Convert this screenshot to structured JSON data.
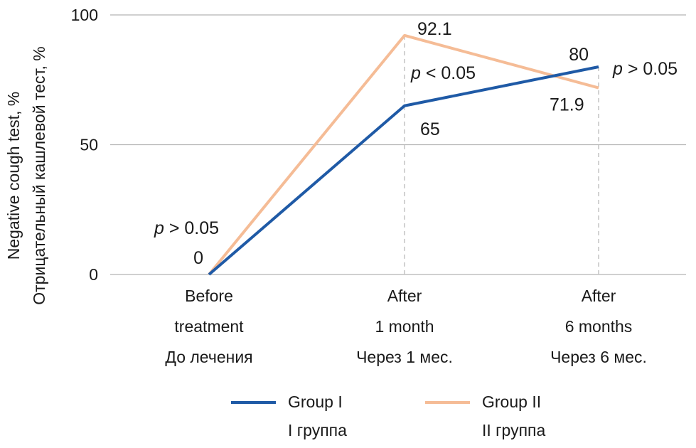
{
  "chart_data": {
    "type": "line",
    "title": "",
    "ylabel_lines": [
      "Negative cough test, %",
      "Отрицательный кашлевой тест, %"
    ],
    "ylim": [
      0,
      100
    ],
    "yticks": [
      0,
      50,
      100
    ],
    "grid": "horizontal",
    "categories": [
      [
        "Before",
        "treatment",
        "До лечения"
      ],
      [
        "After",
        "1 month",
        "Через 1 мес."
      ],
      [
        "After",
        "6 months",
        "Через 6 мес."
      ]
    ],
    "series": [
      {
        "name_lines": [
          "Group I",
          "I группа"
        ],
        "color": "#1f5aa6",
        "values": [
          0,
          65,
          80
        ]
      },
      {
        "name_lines": [
          "Group II",
          "II группа"
        ],
        "color": "#f5bc96",
        "values": [
          0,
          92.1,
          71.9
        ]
      }
    ],
    "data_labels": [
      {
        "text": "0",
        "category": 0,
        "value": 0
      },
      {
        "text": "92.1",
        "category": 1,
        "value": 92.1
      },
      {
        "text": "65",
        "category": 1,
        "value": 65
      },
      {
        "text": "80",
        "category": 2,
        "value": 80
      },
      {
        "text": "71.9",
        "category": 2,
        "value": 71.9
      }
    ],
    "annotations": [
      {
        "p": "p",
        "rest": " > 0.05",
        "category": 0
      },
      {
        "p": "p",
        "rest": " < 0.05",
        "category": 1
      },
      {
        "p": "p",
        "rest": " > 0.05",
        "category": 2
      }
    ],
    "legend_position": "bottom"
  }
}
